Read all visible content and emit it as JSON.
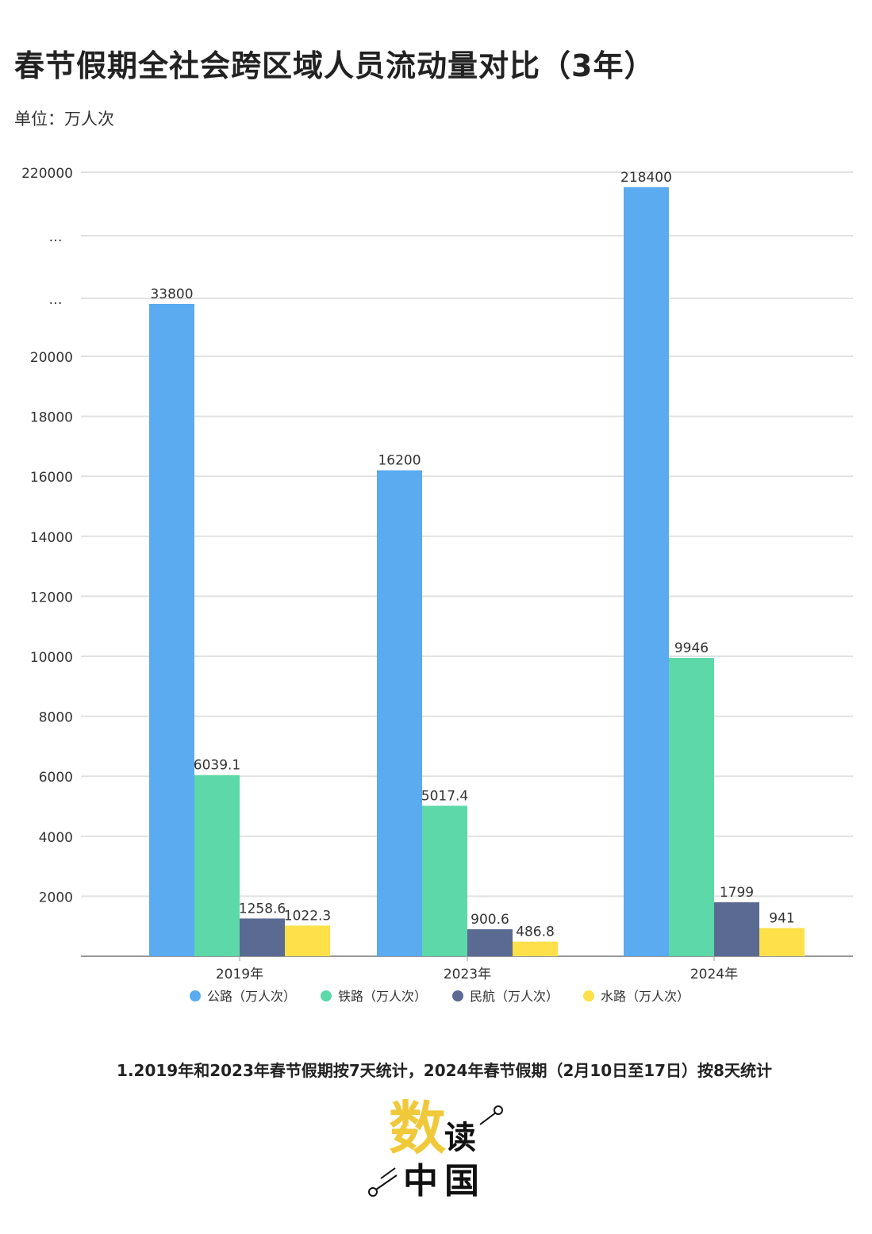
{
  "title": "春节假期全社会跨区域人员流动量对比（3年）",
  "unit": "单位：万人次",
  "note": "1.2019年和2023年春节假期按7天统计，2024年春节假期（2月10日至17日）按8天统计",
  "logo": {
    "text": "数读中国",
    "colors": {
      "accent": "#f0c93a",
      "ink": "#111111"
    }
  },
  "chart_data": {
    "type": "bar",
    "title": "春节假期全社会跨区域人员流动量对比（3年）",
    "ylabel": "单位：万人次",
    "categories": [
      "2019年",
      "2023年",
      "2024年"
    ],
    "y_ticks": [
      "220000",
      "…",
      "…",
      "20000",
      "18000",
      "16000",
      "14000",
      "12000",
      "10000",
      "8000",
      "6000",
      "4000",
      "2000"
    ],
    "axis_break": true,
    "ylim": [
      0,
      220000
    ],
    "grid": true,
    "legend_placement": "bottom",
    "series": [
      {
        "name": "公路（万人次）",
        "color": "#5aabf0",
        "values": [
          33800,
          16200,
          218400
        ],
        "labels": [
          "33800",
          "16200",
          "218400"
        ]
      },
      {
        "name": "铁路（万人次）",
        "color": "#5dd8a8",
        "values": [
          6039.1,
          5017.4,
          9946
        ],
        "labels": [
          "6039.1",
          "5017.4",
          "9946"
        ]
      },
      {
        "name": "民航（万人次）",
        "color": "#5a6a92",
        "values": [
          1258.6,
          900.6,
          1799
        ],
        "labels": [
          "1258.6",
          "900.6",
          "1799"
        ]
      },
      {
        "name": "水路（万人次）",
        "color": "#fde04a",
        "values": [
          1022.3,
          486.8,
          941
        ],
        "labels": [
          "1022.3",
          "486.8",
          "941"
        ]
      }
    ]
  }
}
